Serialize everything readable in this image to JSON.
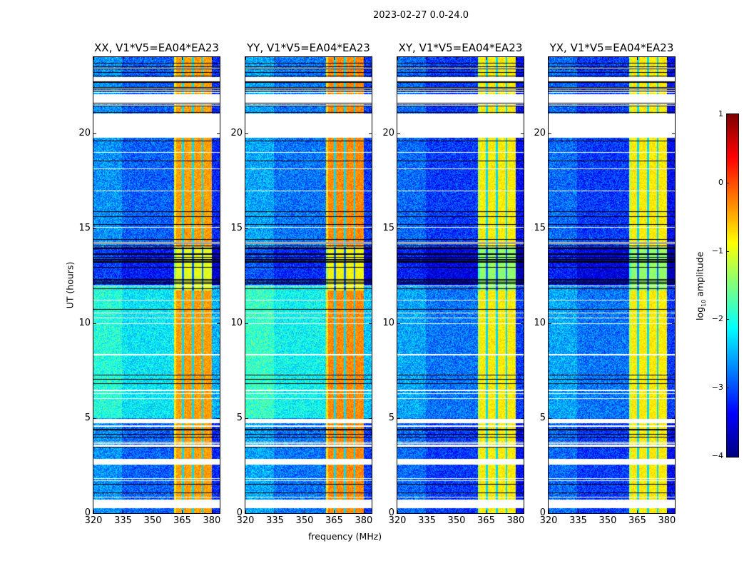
{
  "figure": {
    "suptitle": "2023-02-27 0.0-24.0",
    "xlabel": "frequency (MHz)",
    "ylabel": "UT (hours)",
    "colorbar_label_prefix": "log",
    "colorbar_label_sub": "10",
    "colorbar_label_suffix": " amplitude"
  },
  "chart_data": {
    "type": "heatmap",
    "colormap": "jet",
    "xlabel": "frequency (MHz)",
    "ylabel": "UT (hours)",
    "xlim": [
      320,
      384
    ],
    "ylim": [
      0,
      24
    ],
    "xticks": [
      "320",
      "335",
      "350",
      "365",
      "380"
    ],
    "xtick_values": [
      320,
      335,
      350,
      365,
      380
    ],
    "yticks": [
      "0",
      "5",
      "10",
      "15",
      "20"
    ],
    "ytick_values": [
      0,
      5,
      10,
      15,
      20
    ],
    "colorbar": {
      "range": [
        -4,
        1
      ],
      "ticks": [
        "1",
        "0",
        "−1",
        "−2",
        "−3",
        "−4"
      ],
      "tick_values": [
        1,
        0,
        -1,
        -2,
        -3,
        -4
      ]
    },
    "panels": [
      {
        "title": "XX, V1*V5=EA04*EA23",
        "background_level": -2.9,
        "midday_level": -2.2,
        "rfi_level": -0.4
      },
      {
        "title": "YY, V1*V5=EA04*EA23",
        "background_level": -2.8,
        "midday_level": -2.1,
        "rfi_level": -0.3
      },
      {
        "title": "XY, V1*V5=EA04*EA23",
        "background_level": -3.1,
        "midday_level": -2.8,
        "rfi_level": -0.8
      },
      {
        "title": "YX, V1*V5=EA04*EA23",
        "background_level": -3.1,
        "midday_level": -2.8,
        "rfi_level": -0.8
      }
    ],
    "rfi_band_mhz": [
      360.5,
      380.0
    ],
    "rfi_subband_gaps_mhz": [
      365.2,
      370.2,
      375.2
    ],
    "flagged_hours": [
      [
        0.3,
        0.7
      ],
      [
        2.55,
        2.75
      ],
      [
        3.5,
        3.6
      ],
      [
        4.55,
        4.62
      ],
      [
        4.75,
        4.95
      ],
      [
        19.74,
        21.05
      ],
      [
        21.61,
        22.03
      ],
      [
        22.74,
        22.93
      ]
    ],
    "partially_flagged_hours": [
      [
        21.35,
        21.61
      ],
      [
        22.03,
        22.74
      ],
      [
        4.0,
        4.5
      ],
      [
        12.0,
        14.0
      ]
    ]
  }
}
